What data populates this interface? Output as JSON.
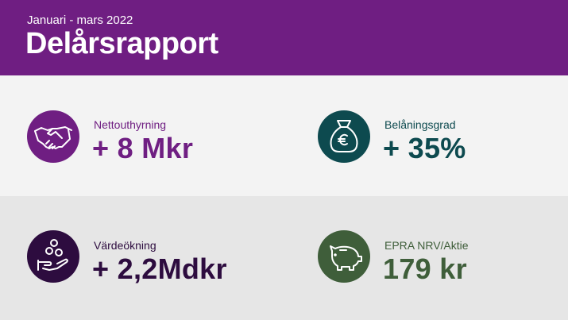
{
  "header": {
    "subtitle": "Januari - mars 2022",
    "title": "Delårsrapport"
  },
  "kpis": [
    {
      "label": "Nettouthyrning",
      "value": "+ 8 Mkr"
    },
    {
      "label": "Belåningsgrad",
      "value": "+ 35%"
    },
    {
      "label": "Värdeökning",
      "value": "+ 2,2Mdkr"
    },
    {
      "label": "EPRA NRV/Aktie",
      "value": "179 kr"
    }
  ]
}
